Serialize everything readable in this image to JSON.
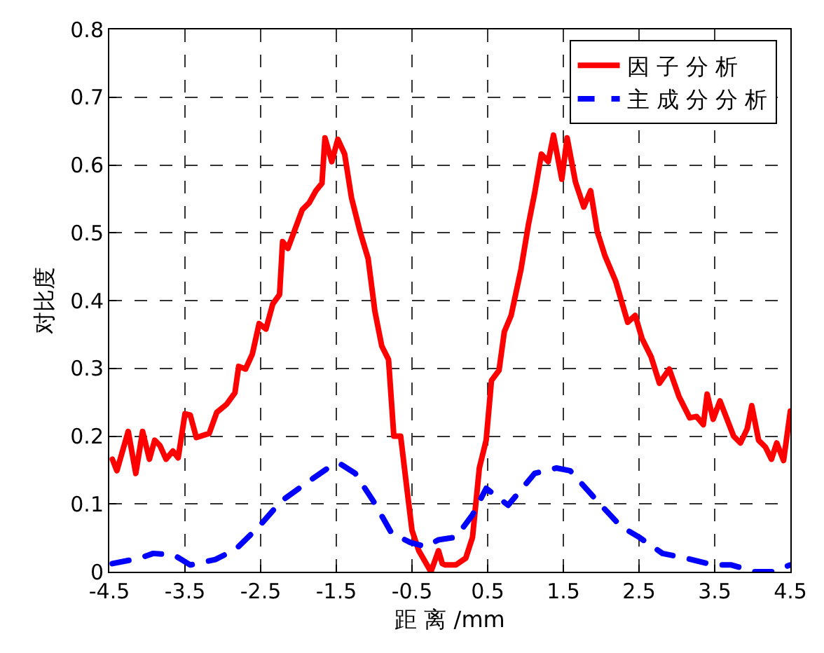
{
  "chart_data": {
    "type": "line",
    "xlabel": "距 离 /mm",
    "ylabel": "对比度",
    "xlim": [
      -4.5,
      4.5
    ],
    "ylim": [
      0,
      0.8
    ],
    "xticks": [
      -4.5,
      -3.5,
      -2.5,
      -1.5,
      -0.5,
      0.5,
      1.5,
      2.5,
      3.5,
      4.5
    ],
    "yticks": [
      0,
      0.1,
      0.2,
      0.3,
      0.4,
      0.5,
      0.6,
      0.7,
      0.8
    ],
    "grid": true,
    "legend": "top right",
    "marker": "none",
    "series": [
      {
        "name": "因 子 分 析",
        "color": "#ff0000",
        "line_style": "solid",
        "x": [
          -4.46,
          -4.4,
          -4.25,
          -4.15,
          -4.06,
          -3.97,
          -3.9,
          -3.83,
          -3.75,
          -3.66,
          -3.59,
          -3.5,
          -3.43,
          -3.35,
          -3.18,
          -3.08,
          -2.95,
          -2.84,
          -2.79,
          -2.7,
          -2.61,
          -2.52,
          -2.43,
          -2.34,
          -2.25,
          -2.21,
          -2.14,
          -1.95,
          -1.86,
          -1.77,
          -1.69,
          -1.65,
          -1.56,
          -1.48,
          -1.39,
          -1.3,
          -1.19,
          -1.08,
          -0.99,
          -0.9,
          -0.81,
          -0.74,
          -0.65,
          -0.57,
          -0.5,
          -0.41,
          -0.25,
          -0.15,
          -0.1,
          -0.06,
          0.08,
          0.21,
          0.3,
          0.39,
          0.48,
          0.55,
          0.65,
          0.72,
          0.81,
          0.94,
          1.04,
          1.12,
          1.21,
          1.3,
          1.37,
          1.48,
          1.55,
          1.66,
          1.77,
          1.86,
          1.95,
          2.05,
          2.19,
          2.35,
          2.45,
          2.54,
          2.66,
          2.77,
          2.9,
          3.03,
          3.17,
          3.26,
          3.35,
          3.4,
          3.48,
          3.57,
          3.75,
          3.84,
          3.93,
          3.99,
          4.08,
          4.17,
          4.25,
          4.32,
          4.41,
          4.5
        ],
        "values": [
          0.166,
          0.149,
          0.207,
          0.145,
          0.207,
          0.166,
          0.194,
          0.186,
          0.166,
          0.178,
          0.168,
          0.233,
          0.231,
          0.198,
          0.204,
          0.235,
          0.247,
          0.264,
          0.303,
          0.299,
          0.321,
          0.366,
          0.358,
          0.395,
          0.409,
          0.487,
          0.477,
          0.534,
          0.544,
          0.562,
          0.573,
          0.64,
          0.605,
          0.638,
          0.616,
          0.552,
          0.503,
          0.462,
          0.384,
          0.333,
          0.313,
          0.2,
          0.2,
          0.125,
          0.061,
          0.031,
          0.0,
          0.031,
          0.012,
          0.01,
          0.01,
          0.02,
          0.051,
          0.153,
          0.194,
          0.282,
          0.297,
          0.354,
          0.378,
          0.446,
          0.513,
          0.558,
          0.616,
          0.605,
          0.644,
          0.579,
          0.64,
          0.575,
          0.538,
          0.562,
          0.501,
          0.466,
          0.429,
          0.368,
          0.378,
          0.344,
          0.317,
          0.278,
          0.299,
          0.258,
          0.227,
          0.229,
          0.217,
          0.262,
          0.225,
          0.252,
          0.2,
          0.19,
          0.211,
          0.245,
          0.194,
          0.184,
          0.166,
          0.19,
          0.164,
          0.237
        ]
      },
      {
        "name": "主 成 分 分 析",
        "color": "#0000ff",
        "line_style": "dashed",
        "x": [
          -4.46,
          -4.1,
          -3.92,
          -3.65,
          -3.43,
          -3.1,
          -2.83,
          -2.52,
          -2.23,
          -1.92,
          -1.61,
          -1.46,
          -1.25,
          -1.01,
          -0.77,
          -0.52,
          -0.32,
          -0.15,
          0.08,
          0.3,
          0.48,
          0.77,
          1.12,
          1.41,
          1.59,
          1.95,
          2.26,
          2.5,
          2.81,
          3.12,
          3.48,
          3.72,
          4.03,
          4.26,
          4.5
        ],
        "values": [
          0.012,
          0.02,
          0.027,
          0.025,
          0.01,
          0.018,
          0.033,
          0.067,
          0.104,
          0.129,
          0.153,
          0.16,
          0.145,
          0.104,
          0.057,
          0.043,
          0.037,
          0.047,
          0.051,
          0.084,
          0.123,
          0.098,
          0.145,
          0.153,
          0.149,
          0.104,
          0.067,
          0.051,
          0.027,
          0.02,
          0.01,
          0.01,
          0.0,
          0.0,
          0.01
        ]
      }
    ]
  }
}
